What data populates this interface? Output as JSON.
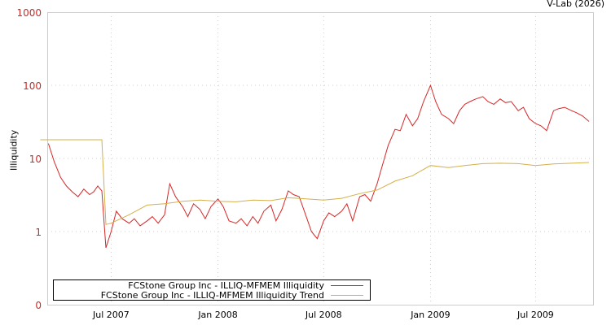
{
  "header": {
    "credit": "V-Lab (2026)"
  },
  "legend": {
    "items": [
      {
        "label": "FCStone Group Inc - ILLIQ-MFMEM Illiquidity",
        "color": "#d62728"
      },
      {
        "label": "FCStone Group Inc - ILLIQ-MFMEM Illiquidity Trend",
        "color": "#d4b04a"
      }
    ]
  },
  "chart_data": {
    "type": "line",
    "title": "",
    "xlabel": "",
    "ylabel": "Illiquidity",
    "yscale": "log",
    "ylim": [
      0.1,
      1000
    ],
    "y_ticks": [
      {
        "label": "1000",
        "value": 1000
      },
      {
        "label": "100",
        "value": 100
      },
      {
        "label": "10",
        "value": 10
      },
      {
        "label": "1",
        "value": 1
      },
      {
        "label": "0",
        "value": 0.1
      }
    ],
    "x_ticks": [
      "Jul 2007",
      "Jan 2008",
      "Jul 2008",
      "Jan 2009",
      "Jul 2009"
    ],
    "x_range": [
      "2007-03",
      "2009-10"
    ],
    "grid": true,
    "legend_position": "bottom-left inside",
    "series": [
      {
        "name": "FCStone Group Inc - ILLIQ-MFMEM Illiquidity",
        "color": "#d62728",
        "x": [
          "2007-03-15",
          "2007-03-25",
          "2007-04-05",
          "2007-04-15",
          "2007-04-25",
          "2007-05-05",
          "2007-05-15",
          "2007-05-25",
          "2007-06-01",
          "2007-06-08",
          "2007-06-15",
          "2007-06-22",
          "2007-07-01",
          "2007-07-10",
          "2007-07-20",
          "2007-08-01",
          "2007-08-10",
          "2007-08-20",
          "2007-09-01",
          "2007-09-10",
          "2007-09-20",
          "2007-10-01",
          "2007-10-10",
          "2007-10-20",
          "2007-11-01",
          "2007-11-10",
          "2007-11-20",
          "2007-12-01",
          "2007-12-10",
          "2007-12-20",
          "2008-01-01",
          "2008-01-10",
          "2008-01-20",
          "2008-02-01",
          "2008-02-10",
          "2008-02-20",
          "2008-03-01",
          "2008-03-10",
          "2008-03-20",
          "2008-04-01",
          "2008-04-10",
          "2008-04-20",
          "2008-05-01",
          "2008-05-10",
          "2008-05-20",
          "2008-06-01",
          "2008-06-10",
          "2008-06-20",
          "2008-07-01",
          "2008-07-10",
          "2008-07-20",
          "2008-08-01",
          "2008-08-10",
          "2008-08-20",
          "2008-09-01",
          "2008-09-10",
          "2008-09-20",
          "2008-10-01",
          "2008-10-10",
          "2008-10-20",
          "2008-11-01",
          "2008-11-10",
          "2008-11-20",
          "2008-12-01",
          "2008-12-10",
          "2008-12-20",
          "2009-01-01",
          "2009-01-10",
          "2009-01-20",
          "2009-02-01",
          "2009-02-10",
          "2009-02-20",
          "2009-03-01",
          "2009-03-10",
          "2009-03-20",
          "2009-04-01",
          "2009-04-10",
          "2009-04-20",
          "2009-05-01",
          "2009-05-10",
          "2009-05-20",
          "2009-06-01",
          "2009-06-10",
          "2009-06-20",
          "2009-07-01",
          "2009-07-10",
          "2009-07-20",
          "2009-08-01",
          "2009-08-10",
          "2009-08-20",
          "2009-09-01",
          "2009-09-10",
          "2009-09-20",
          "2009-10-01"
        ],
        "values": [
          16,
          9,
          5.5,
          4.2,
          3.5,
          3.0,
          3.8,
          3.2,
          3.5,
          4.2,
          3.6,
          0.6,
          1.0,
          1.9,
          1.5,
          1.3,
          1.5,
          1.2,
          1.4,
          1.6,
          1.3,
          1.7,
          4.5,
          3.0,
          2.2,
          1.6,
          2.4,
          2.0,
          1.5,
          2.2,
          2.8,
          2.2,
          1.4,
          1.3,
          1.5,
          1.2,
          1.6,
          1.3,
          1.9,
          2.3,
          1.4,
          2.0,
          3.6,
          3.2,
          3.0,
          1.6,
          1.0,
          0.8,
          1.4,
          1.8,
          1.6,
          1.9,
          2.4,
          1.4,
          3.0,
          3.2,
          2.6,
          4.5,
          8,
          15,
          25,
          24,
          40,
          28,
          35,
          60,
          100,
          60,
          40,
          35,
          30,
          45,
          55,
          60,
          65,
          70,
          60,
          55,
          65,
          58,
          60,
          45,
          50,
          35,
          30,
          28,
          24,
          45,
          48,
          50,
          45,
          42,
          38,
          32
        ]
      },
      {
        "name": "FCStone Group Inc - ILLIQ-MFMEM Illiquidity Trend",
        "color": "#d4b04a",
        "x": [
          "2007-03-01",
          "2007-06-15",
          "2007-06-22",
          "2007-07-01",
          "2007-08-01",
          "2007-09-01",
          "2007-10-01",
          "2007-11-01",
          "2007-12-01",
          "2008-01-01",
          "2008-02-01",
          "2008-03-01",
          "2008-04-01",
          "2008-05-01",
          "2008-06-01",
          "2008-07-01",
          "2008-08-01",
          "2008-09-01",
          "2008-10-01",
          "2008-11-01",
          "2008-12-01",
          "2009-01-01",
          "2009-02-01",
          "2009-03-01",
          "2009-04-01",
          "2009-05-01",
          "2009-06-01",
          "2009-07-01",
          "2009-08-01",
          "2009-09-01",
          "2009-10-01"
        ],
        "values": [
          18,
          18,
          1.25,
          1.3,
          1.7,
          2.3,
          2.4,
          2.6,
          2.7,
          2.6,
          2.55,
          2.7,
          2.65,
          2.9,
          2.8,
          2.7,
          2.85,
          3.3,
          3.7,
          4.9,
          5.8,
          8.0,
          7.5,
          8.0,
          8.5,
          8.6,
          8.5,
          8.0,
          8.4,
          8.6,
          8.8
        ]
      }
    ]
  }
}
